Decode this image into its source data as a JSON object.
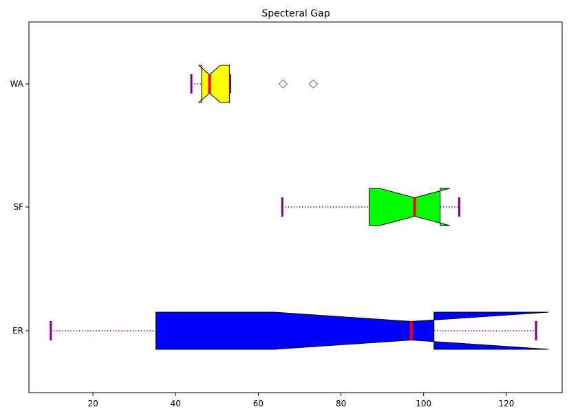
{
  "chart_data": {
    "type": "boxplot",
    "orientation": "horizontal",
    "title": "Specteral Gap",
    "xlabel": "",
    "ylabel": "",
    "xlim": [
      4.5,
      133.5
    ],
    "x_ticks": [
      20,
      40,
      60,
      80,
      100,
      120
    ],
    "grid": false,
    "notched": true,
    "series": [
      {
        "name": "ER",
        "whisker_low": 9.8,
        "q1": 35.2,
        "median": 97.0,
        "q3": 102.5,
        "whisker_high": 127.2,
        "notch_low": 63.8,
        "notch_high": 130.2,
        "fill": "#0000ff",
        "outliers": []
      },
      {
        "name": "SF",
        "whisker_low": 65.8,
        "q1": 86.8,
        "median": 97.8,
        "q3": 104.0,
        "whisker_high": 108.6,
        "notch_low": 89.4,
        "notch_high": 106.3,
        "fill": "#00ff00",
        "outliers": []
      },
      {
        "name": "WA",
        "whisker_low": 43.8,
        "q1": 46.3,
        "median": 48.2,
        "q3": 53.0,
        "whisker_high": 53.2,
        "notch_low": 45.6,
        "notch_high": 50.8,
        "fill": "#ffff00",
        "outliers": [
          66.0,
          73.3
        ]
      }
    ],
    "colors": {
      "median": "#ff0000",
      "whisker": "#800080",
      "outlier_edge": "#808080",
      "box_edge": "#000000"
    }
  }
}
